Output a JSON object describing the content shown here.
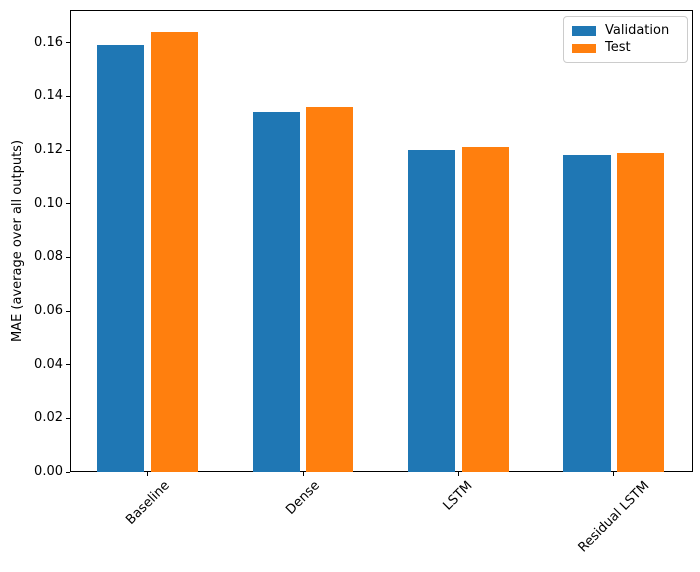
{
  "chart_data": {
    "type": "bar",
    "title": "",
    "xlabel": "",
    "ylabel": "MAE (average over all outputs)",
    "categories": [
      "Baseline",
      "Dense",
      "LSTM",
      "Residual LSTM"
    ],
    "series": [
      {
        "name": "Validation",
        "color": "#1f77b4",
        "values": [
          0.159,
          0.134,
          0.12,
          0.118
        ]
      },
      {
        "name": "Test",
        "color": "#ff7f0e",
        "values": [
          0.164,
          0.136,
          0.121,
          0.119
        ]
      }
    ],
    "ylim": [
      0,
      0.1722
    ],
    "yticks": [
      "0.00",
      "0.02",
      "0.04",
      "0.06",
      "0.08",
      "0.10",
      "0.12",
      "0.14",
      "0.16"
    ],
    "ytick_values": [
      0.0,
      0.02,
      0.04,
      0.06,
      0.08,
      0.1,
      0.12,
      0.14,
      0.16
    ],
    "xtick_rotation": 45,
    "grid": false,
    "legend_position": "upper right",
    "plot_background": "#ffffff",
    "axis_color": "#000000"
  }
}
